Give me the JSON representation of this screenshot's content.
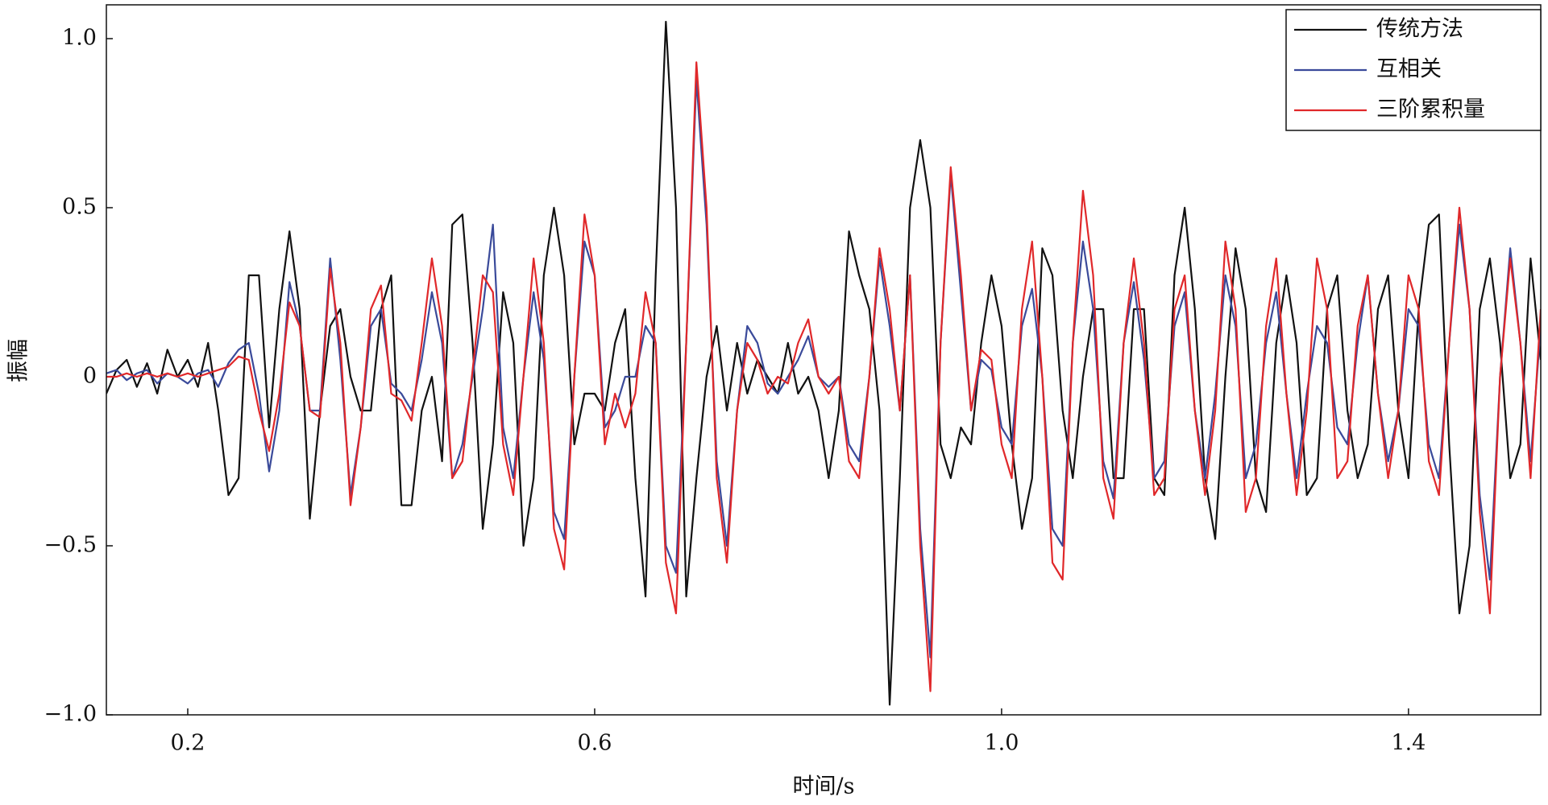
{
  "chart_data": {
    "type": "line",
    "x_label": "时间/s",
    "y_label": "振幅",
    "x": [
      0.12,
      0.13,
      0.14,
      0.15,
      0.16,
      0.17,
      0.18,
      0.19,
      0.2,
      0.21,
      0.22,
      0.23,
      0.24,
      0.25,
      0.26,
      0.27,
      0.28,
      0.29,
      0.3,
      0.31,
      0.32,
      0.33,
      0.34,
      0.35,
      0.36,
      0.37,
      0.38,
      0.39,
      0.4,
      0.41,
      0.42,
      0.43,
      0.44,
      0.45,
      0.46,
      0.47,
      0.48,
      0.49,
      0.5,
      0.51,
      0.52,
      0.53,
      0.54,
      0.55,
      0.56,
      0.57,
      0.58,
      0.59,
      0.6,
      0.61,
      0.62,
      0.63,
      0.64,
      0.65,
      0.66,
      0.67,
      0.68,
      0.69,
      0.7,
      0.71,
      0.72,
      0.73,
      0.74,
      0.75,
      0.76,
      0.77,
      0.78,
      0.79,
      0.8,
      0.81,
      0.82,
      0.83,
      0.84,
      0.85,
      0.86,
      0.87,
      0.88,
      0.89,
      0.9,
      0.91,
      0.92,
      0.93,
      0.94,
      0.95,
      0.96,
      0.97,
      0.98,
      0.99,
      1.0,
      1.01,
      1.02,
      1.03,
      1.04,
      1.05,
      1.06,
      1.07,
      1.08,
      1.09,
      1.1,
      1.11,
      1.12,
      1.13,
      1.14,
      1.15,
      1.16,
      1.17,
      1.18,
      1.19,
      1.2,
      1.21,
      1.22,
      1.23,
      1.24,
      1.25,
      1.26,
      1.27,
      1.28,
      1.29,
      1.3,
      1.31,
      1.32,
      1.33,
      1.34,
      1.35,
      1.36,
      1.37,
      1.38,
      1.39,
      1.4,
      1.41,
      1.42,
      1.43,
      1.44,
      1.45,
      1.46,
      1.47,
      1.48,
      1.49,
      1.5,
      1.51,
      1.52,
      1.53
    ],
    "series": [
      {
        "name": "传统方法",
        "color": "#111111",
        "values": [
          -0.05,
          0.02,
          0.05,
          -0.03,
          0.04,
          -0.05,
          0.08,
          0,
          0.05,
          -0.03,
          0.1,
          -0.1,
          -0.35,
          -0.3,
          0.3,
          0.3,
          -0.15,
          0.2,
          0.43,
          0.2,
          -0.42,
          -0.1,
          0.15,
          0.2,
          0,
          -0.1,
          -0.1,
          0.2,
          0.3,
          -0.38,
          -0.38,
          -0.1,
          0,
          -0.25,
          0.45,
          0.48,
          0.1,
          -0.45,
          -0.2,
          0.25,
          0.1,
          -0.5,
          -0.3,
          0.3,
          0.5,
          0.3,
          -0.2,
          -0.05,
          -0.05,
          -0.1,
          0.1,
          0.2,
          -0.3,
          -0.65,
          0.3,
          1.05,
          0.5,
          -0.65,
          -0.3,
          0,
          0.15,
          -0.1,
          0.1,
          -0.05,
          0.05,
          0,
          -0.05,
          0.1,
          -0.05,
          0,
          -0.1,
          -0.3,
          -0.1,
          0.43,
          0.3,
          0.2,
          -0.1,
          -0.97,
          -0.3,
          0.5,
          0.7,
          0.5,
          -0.2,
          -0.3,
          -0.15,
          -0.2,
          0.1,
          0.3,
          0.15,
          -0.2,
          -0.45,
          -0.3,
          0.38,
          0.3,
          -0.1,
          -0.3,
          0,
          0.2,
          0.2,
          -0.3,
          -0.3,
          0.2,
          0.2,
          -0.3,
          -0.35,
          0.3,
          0.5,
          0.2,
          -0.3,
          -0.48,
          0,
          0.38,
          0.2,
          -0.3,
          -0.4,
          0.1,
          0.3,
          0.1,
          -0.35,
          -0.3,
          0.2,
          0.3,
          -0.1,
          -0.3,
          -0.2,
          0.2,
          0.3,
          -0.1,
          -0.3,
          0.2,
          0.45,
          0.48,
          -0.2,
          -0.7,
          -0.5,
          0.2,
          0.35,
          0.1,
          -0.3,
          -0.2,
          0.35,
          0.05
        ]
      },
      {
        "name": "互相关",
        "color": "#3a4a9a",
        "values": [
          0.01,
          0.02,
          -0.01,
          0.01,
          0.02,
          -0.02,
          0.01,
          0,
          -0.02,
          0.01,
          0.02,
          -0.03,
          0.04,
          0.08,
          0.1,
          -0.05,
          -0.28,
          -0.1,
          0.28,
          0.15,
          -0.1,
          -0.1,
          0.35,
          0.05,
          -0.35,
          -0.15,
          0.15,
          0.2,
          -0.02,
          -0.05,
          -0.1,
          0.05,
          0.25,
          0.1,
          -0.3,
          -0.2,
          0,
          0.2,
          0.45,
          -0.15,
          -0.3,
          0,
          0.25,
          0.05,
          -0.4,
          -0.48,
          0,
          0.4,
          0.3,
          -0.15,
          -0.1,
          0,
          0,
          0.15,
          0.1,
          -0.5,
          -0.58,
          0.1,
          0.88,
          0.45,
          -0.25,
          -0.5,
          -0.1,
          0.15,
          0.1,
          -0.02,
          -0.05,
          0,
          0.05,
          0.12,
          0,
          -0.03,
          0,
          -0.2,
          -0.25,
          0,
          0.35,
          0.15,
          -0.1,
          0.3,
          -0.45,
          -0.83,
          0.1,
          0.6,
          0.25,
          -0.1,
          0.05,
          0.02,
          -0.15,
          -0.2,
          0.15,
          0.26,
          0,
          -0.45,
          -0.5,
          0.1,
          0.4,
          0.2,
          -0.25,
          -0.36,
          0.1,
          0.28,
          0.05,
          -0.3,
          -0.25,
          0.15,
          0.25,
          -0.1,
          -0.3,
          -0.05,
          0.3,
          0.15,
          -0.3,
          -0.2,
          0.1,
          0.25,
          -0.05,
          -0.3,
          -0.05,
          0.15,
          0.1,
          -0.15,
          -0.2,
          0.1,
          0.3,
          -0.05,
          -0.25,
          -0.1,
          0.2,
          0.15,
          -0.2,
          -0.3,
          0.1,
          0.45,
          0.2,
          -0.35,
          -0.6,
          0,
          0.38,
          0.1,
          -0.25,
          0.15
        ]
      },
      {
        "name": "三阶累积量",
        "color": "#e0282a",
        "values": [
          0,
          0,
          0.01,
          0,
          0.01,
          0,
          0.01,
          0,
          0.01,
          0,
          0.01,
          0.02,
          0.03,
          0.06,
          0.05,
          -0.1,
          -0.22,
          -0.05,
          0.22,
          0.15,
          -0.1,
          -0.12,
          0.32,
          0.1,
          -0.38,
          -0.15,
          0.2,
          0.27,
          -0.05,
          -0.07,
          -0.13,
          0.1,
          0.35,
          0.15,
          -0.3,
          -0.25,
          0.02,
          0.3,
          0.25,
          -0.2,
          -0.35,
          0,
          0.35,
          0.1,
          -0.45,
          -0.57,
          0,
          0.48,
          0.3,
          -0.2,
          -0.05,
          -0.15,
          -0.05,
          0.25,
          0.1,
          -0.55,
          -0.7,
          0.1,
          0.93,
          0.5,
          -0.3,
          -0.55,
          -0.1,
          0.1,
          0.05,
          -0.05,
          0,
          -0.02,
          0.1,
          0.17,
          0,
          -0.05,
          0,
          -0.25,
          -0.3,
          0,
          0.38,
          0.2,
          -0.1,
          0.3,
          -0.5,
          -0.93,
          0.1,
          0.62,
          0.3,
          -0.1,
          0.08,
          0.05,
          -0.2,
          -0.3,
          0.2,
          0.4,
          0,
          -0.55,
          -0.6,
          0.1,
          0.55,
          0.3,
          -0.3,
          -0.42,
          0.1,
          0.35,
          0.1,
          -0.35,
          -0.3,
          0.2,
          0.3,
          -0.1,
          -0.35,
          -0.1,
          0.4,
          0.2,
          -0.4,
          -0.3,
          0.15,
          0.35,
          -0.05,
          -0.35,
          -0.1,
          0.35,
          0.2,
          -0.3,
          -0.25,
          0.15,
          0.3,
          -0.05,
          -0.3,
          -0.1,
          0.3,
          0.2,
          -0.25,
          -0.35,
          0.1,
          0.5,
          0.2,
          -0.4,
          -0.7,
          0,
          0.35,
          0.1,
          -0.3,
          0.2
        ]
      }
    ],
    "xlim": [
      0.12,
      1.53
    ],
    "ylim": [
      -1.0,
      1.1
    ],
    "xticks": [
      0.2,
      0.6,
      {
        "value": 1.0,
        "label": "1.0"
      },
      1.4
    ],
    "yticks": [
      {
        "value": 1.0,
        "label": "1.0"
      },
      0.5,
      0,
      {
        "value": -0.5,
        "label": "−0.5"
      },
      {
        "value": -1.0,
        "label": "−1.0"
      }
    ],
    "grid": false,
    "legend": "upper right"
  }
}
